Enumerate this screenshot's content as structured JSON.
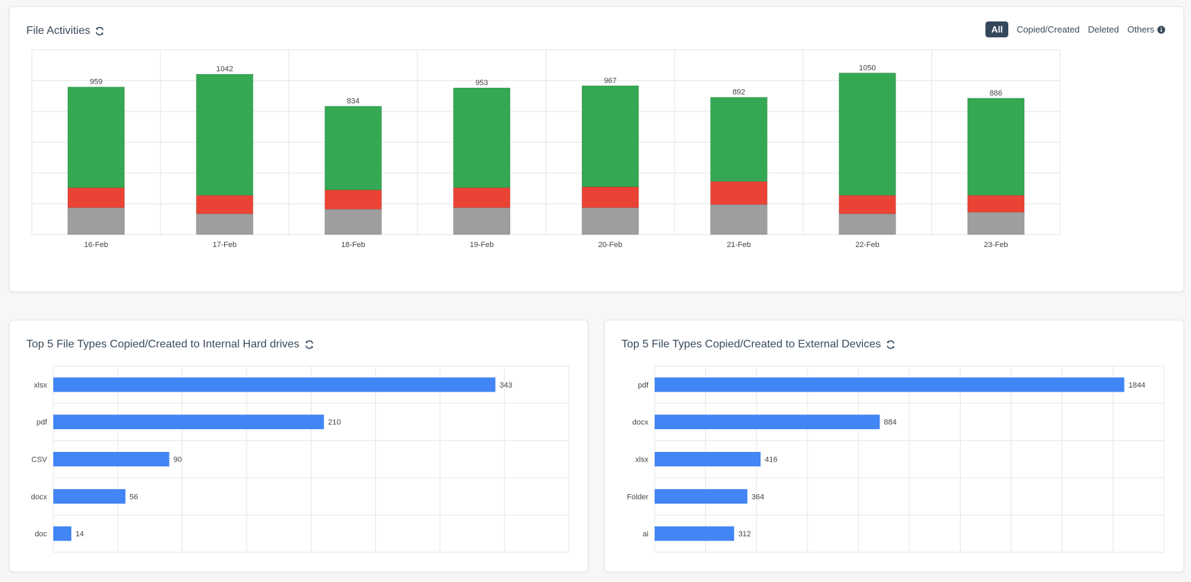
{
  "activity_card": {
    "title": "File Activities",
    "filters": [
      "All",
      "Copied/Created",
      "Deleted",
      "Others"
    ],
    "active_filter": "All",
    "icons": {
      "refresh": "refresh-icon",
      "info": "info-icon"
    }
  },
  "internal_card": {
    "title": "Top 5 File Types Copied/Created to Internal Hard drives",
    "icons": {
      "refresh": "refresh-icon"
    }
  },
  "external_card": {
    "title": "Top 5 File Types Copied/Created to External Devices",
    "icons": {
      "refresh": "refresh-icon"
    }
  },
  "colors": {
    "copied_created": "#34a853",
    "deleted": "#ea4335",
    "others": "#9e9e9e",
    "bar": "#4285f4",
    "grid": "#e6e6e6",
    "active_filter_bg": "#34475d"
  },
  "chart_data": [
    {
      "id": "file-activities",
      "type": "bar",
      "stacked": true,
      "categories": [
        "16-Feb",
        "17-Feb",
        "18-Feb",
        "19-Feb",
        "20-Feb",
        "21-Feb",
        "22-Feb",
        "23-Feb"
      ],
      "totals": [
        959,
        1042,
        834,
        953,
        967,
        892,
        1050,
        886
      ],
      "series": [
        {
          "values": [
            175,
            135,
            165,
            175,
            175,
            195,
            135,
            145
          ],
          "color": "#9e9e9e"
        },
        {
          "values": [
            130,
            120,
            125,
            130,
            135,
            150,
            120,
            110
          ],
          "color": "#ea4335"
        },
        {
          "values": [
            654,
            787,
            544,
            648,
            657,
            547,
            795,
            631
          ],
          "color": "#34a853"
        }
      ],
      "ylim": [
        0,
        1200
      ],
      "grid": true
    },
    {
      "id": "internal-top5",
      "type": "bar",
      "orientation": "horizontal",
      "categories": [
        "xlsx",
        "pdf",
        "CSV",
        "docx",
        "doc"
      ],
      "values": [
        343,
        210,
        90,
        56,
        14
      ],
      "xlim": [
        0,
        400
      ],
      "grid": true
    },
    {
      "id": "external-top5",
      "type": "bar",
      "orientation": "horizontal",
      "categories": [
        "pdf",
        "docx",
        "xlsx",
        "Folder",
        "ai"
      ],
      "values": [
        1844,
        884,
        416,
        364,
        312
      ],
      "xlim": [
        0,
        2000
      ],
      "grid": true
    }
  ]
}
